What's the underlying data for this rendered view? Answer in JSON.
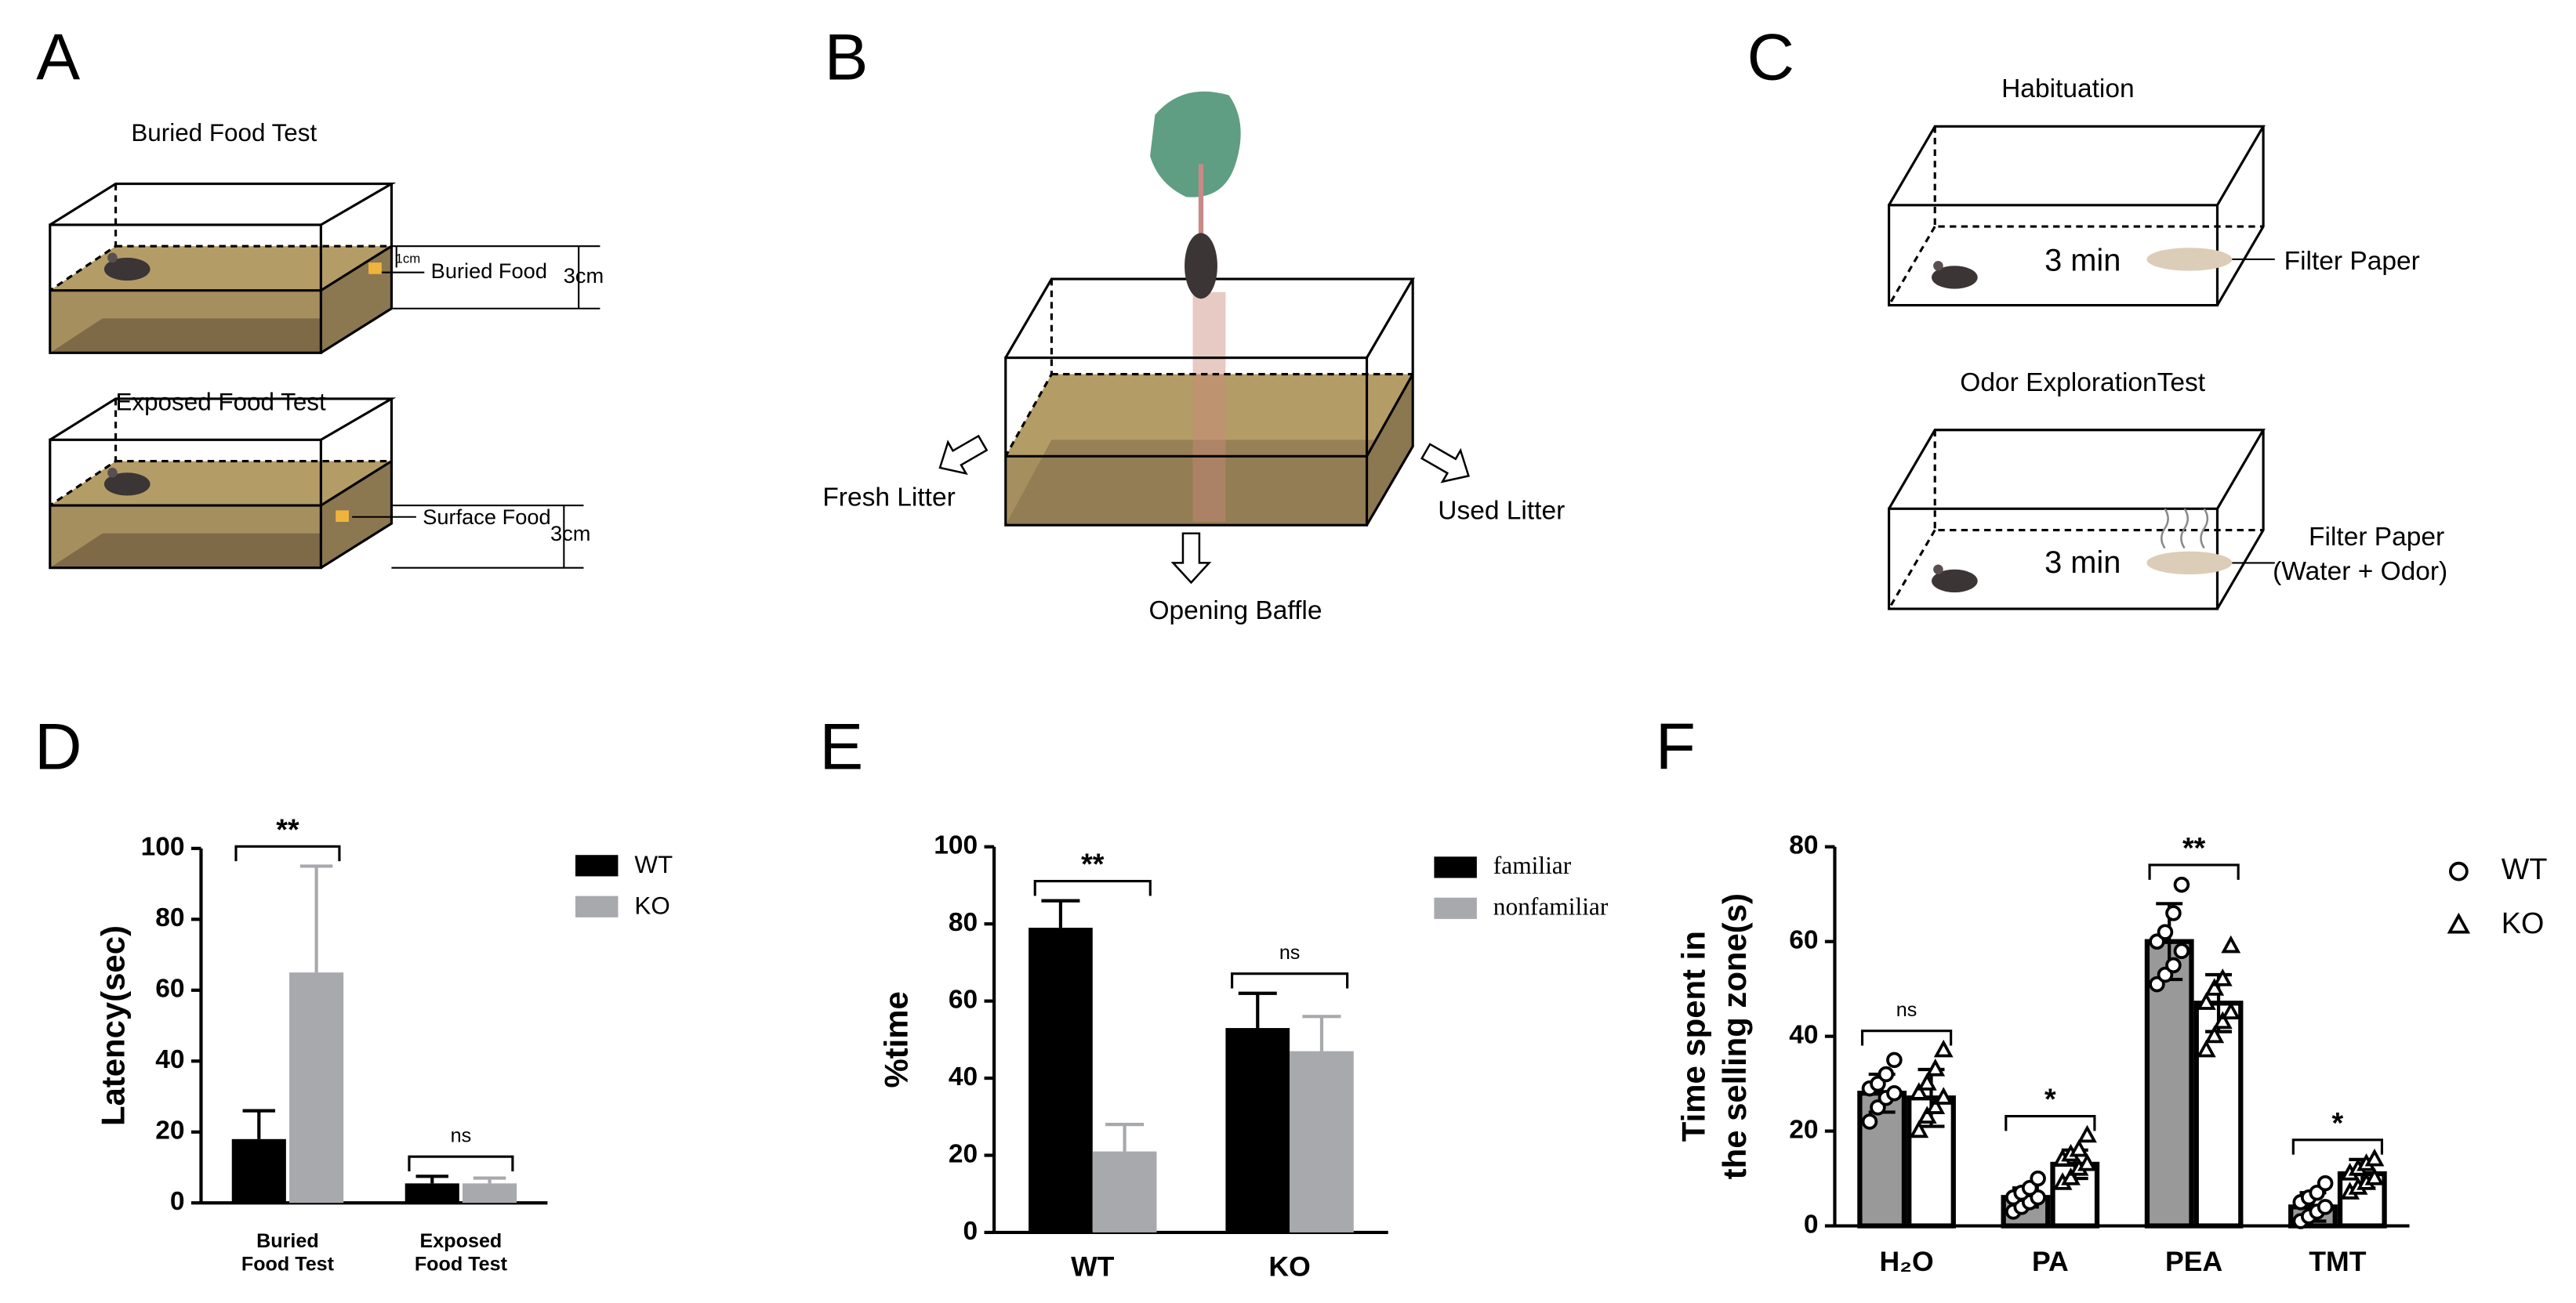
{
  "panel_labels": [
    "A",
    "B",
    "C",
    "D",
    "E",
    "F"
  ],
  "diagram_a": {
    "tests": [
      {
        "title": "Buried Food Test",
        "food": "Buried Food",
        "depth": "1cm",
        "height": "3cm"
      },
      {
        "title": "Exposed Food Test",
        "food": "Surface Food",
        "height": "3cm"
      }
    ]
  },
  "diagram_b": {
    "labels": [
      "Fresh Litter",
      "Opening Baffle",
      "Used Litter"
    ]
  },
  "diagram_c": {
    "steps": [
      {
        "title": "Habituation",
        "time": "3 min",
        "paper": "Filter Paper"
      },
      {
        "title": "Odor ExplorationTest",
        "time": "3 min",
        "paper": "Filter Paper",
        "paper_note": "(Water + Odor)"
      }
    ]
  },
  "chart_data": [
    {
      "type": "bar",
      "y_label": "Latency(sec)",
      "categories": [
        [
          "Buried",
          "Food Test"
        ],
        [
          "Exposed",
          "Food Test"
        ]
      ],
      "series": [
        {
          "name": "WT",
          "color": "#000000",
          "values": [
            18,
            5.5
          ],
          "errors": [
            8,
            2
          ]
        },
        {
          "name": "KO",
          "color": "#a7a9ac",
          "values": [
            65,
            5.5
          ],
          "errors": [
            30,
            1.5
          ]
        }
      ],
      "significance": [
        "**",
        "ns"
      ],
      "ylim": [
        0,
        100
      ],
      "yticks": [
        0,
        20,
        40,
        60,
        80,
        100
      ]
    },
    {
      "type": "bar",
      "y_label": "%time",
      "categories": [
        "WT",
        "KO"
      ],
      "series": [
        {
          "name": "familiar",
          "color": "#000000",
          "values": [
            79,
            53
          ],
          "errors": [
            7,
            9
          ]
        },
        {
          "name": "nonfamiliar",
          "color": "#a7a9ac",
          "values": [
            21,
            47
          ],
          "errors": [
            7,
            9
          ]
        }
      ],
      "significance": [
        "**",
        "ns"
      ],
      "legend_font": "serif",
      "ylim": [
        0,
        100
      ],
      "yticks": [
        0,
        20,
        40,
        60,
        80,
        100
      ]
    },
    {
      "type": "bar",
      "y_label": [
        "Time spent in",
        "the selling zone(s)"
      ],
      "categories": [
        "H₂O",
        "PA",
        "PEA",
        "TMT"
      ],
      "series": [
        {
          "name": "WT",
          "color": "#999999",
          "marker": "circle",
          "values": [
            28,
            6,
            60,
            4
          ],
          "errors": [
            4,
            2,
            8,
            3
          ],
          "points": [
            [
              22,
              25,
              27,
              28,
              29,
              30,
              32,
              35
            ],
            [
              3,
              4,
              5,
              6,
              6,
              7,
              8,
              10
            ],
            [
              51,
              53,
              55,
              58,
              60,
              62,
              66,
              72
            ],
            [
              1,
              2,
              3,
              4,
              5,
              6,
              7,
              9
            ]
          ]
        },
        {
          "name": "KO",
          "color": "#ffffff",
          "marker": "triangle",
          "values": [
            27,
            13,
            47,
            11
          ],
          "errors": [
            6,
            3,
            6,
            3
          ],
          "points": [
            [
              20,
              23,
              25,
              27,
              28,
              30,
              33,
              37
            ],
            [
              9,
              10,
              12,
              13,
              14,
              15,
              16,
              19
            ],
            [
              37,
              40,
              43,
              45,
              47,
              50,
              52,
              59
            ],
            [
              7,
              8,
              9,
              10,
              11,
              12,
              13,
              14
            ]
          ]
        }
      ],
      "significance": [
        "ns",
        "*",
        "**",
        "*"
      ],
      "ylim": [
        0,
        80
      ],
      "yticks": [
        0,
        20,
        40,
        60,
        80
      ]
    }
  ]
}
